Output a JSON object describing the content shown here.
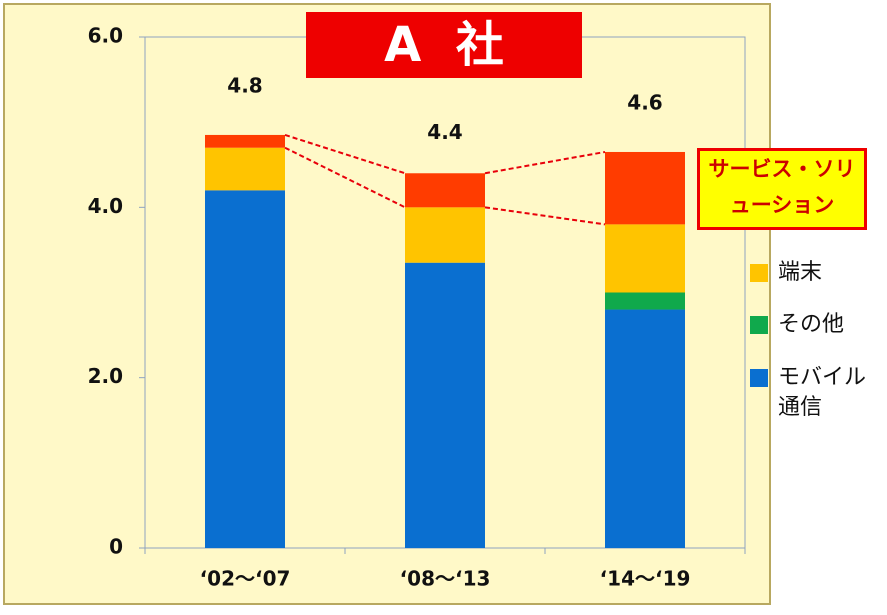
{
  "chart_data": {
    "type": "stacked_bar",
    "title": "A 社",
    "categories": [
      "‘02～‘07",
      "‘08～‘13",
      "‘14～‘19"
    ],
    "series": [
      {
        "name": "モバイル通信",
        "color": "#0a6fd0",
        "values": [
          4.2,
          3.35,
          2.8
        ]
      },
      {
        "name": "その他",
        "color": "#10a94c",
        "values": [
          0,
          0,
          0.2
        ]
      },
      {
        "name": "端末",
        "color": "#ffc400",
        "values": [
          0.5,
          0.65,
          0.8
        ]
      },
      {
        "name": "サービス・ソリューション",
        "color": "#ff3c00",
        "values": [
          0.15,
          0.4,
          0.85
        ]
      }
    ],
    "totals": [
      "4.8",
      "4.4",
      "4.6"
    ],
    "ylim": [
      0,
      6
    ],
    "yticks": [
      0,
      {
        "value": 2,
        "label": "2.0"
      },
      {
        "value": 4,
        "label": "4.0"
      },
      {
        "value": 6,
        "label": "6.0"
      }
    ]
  }
}
